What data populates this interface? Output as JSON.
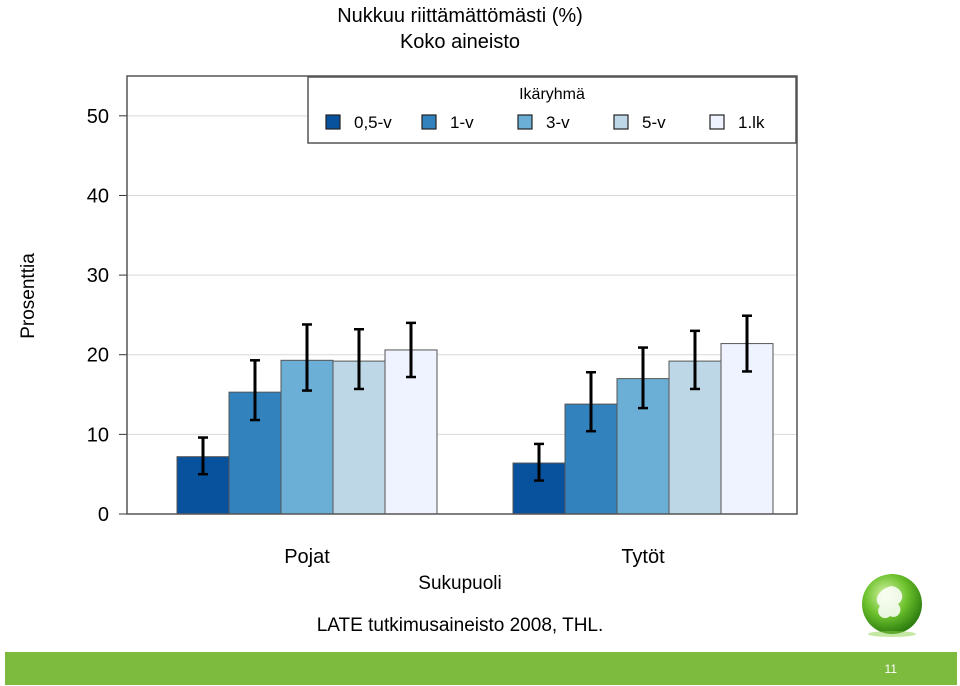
{
  "chart_data": {
    "type": "bar",
    "title": "Nukkuu riittämättömästi (%)",
    "subtitle": "Koko aineisto",
    "xlabel": "Sukupuoli",
    "ylabel": "Prosenttia",
    "ylim": [
      0,
      55
    ],
    "yticks": [
      0,
      10,
      20,
      30,
      40,
      50
    ],
    "grid": true,
    "legend_title": "Ikäryhmä",
    "legend_position": "top-right",
    "categories": [
      "Pojat",
      "Tytöt"
    ],
    "series": [
      {
        "name": "0,5-v",
        "color": "#08519c",
        "values": [
          7.2,
          6.4
        ],
        "err_low": [
          5.0,
          4.2
        ],
        "err_high": [
          9.6,
          8.8
        ]
      },
      {
        "name": "1-v",
        "color": "#3182bd",
        "values": [
          15.3,
          13.8
        ],
        "err_low": [
          11.8,
          10.4
        ],
        "err_high": [
          19.3,
          17.8
        ]
      },
      {
        "name": "3-v",
        "color": "#6baed6",
        "values": [
          19.3,
          17.0
        ],
        "err_low": [
          15.5,
          13.3
        ],
        "err_high": [
          23.8,
          20.9
        ]
      },
      {
        "name": "5-v",
        "color": "#bdd7e7",
        "values": [
          19.2,
          19.2
        ],
        "err_low": [
          15.7,
          15.7
        ],
        "err_high": [
          23.2,
          23.0
        ]
      },
      {
        "name": "1.lk",
        "color": "#eff3ff",
        "values": [
          20.6,
          21.4
        ],
        "err_low": [
          17.2,
          17.9
        ],
        "err_high": [
          24.0,
          24.9
        ]
      }
    ]
  },
  "source_text": "LATE tutkimusaineisto 2008, THL.",
  "footer": {
    "page_number": "11",
    "accent_color": "#7dbb3f"
  }
}
